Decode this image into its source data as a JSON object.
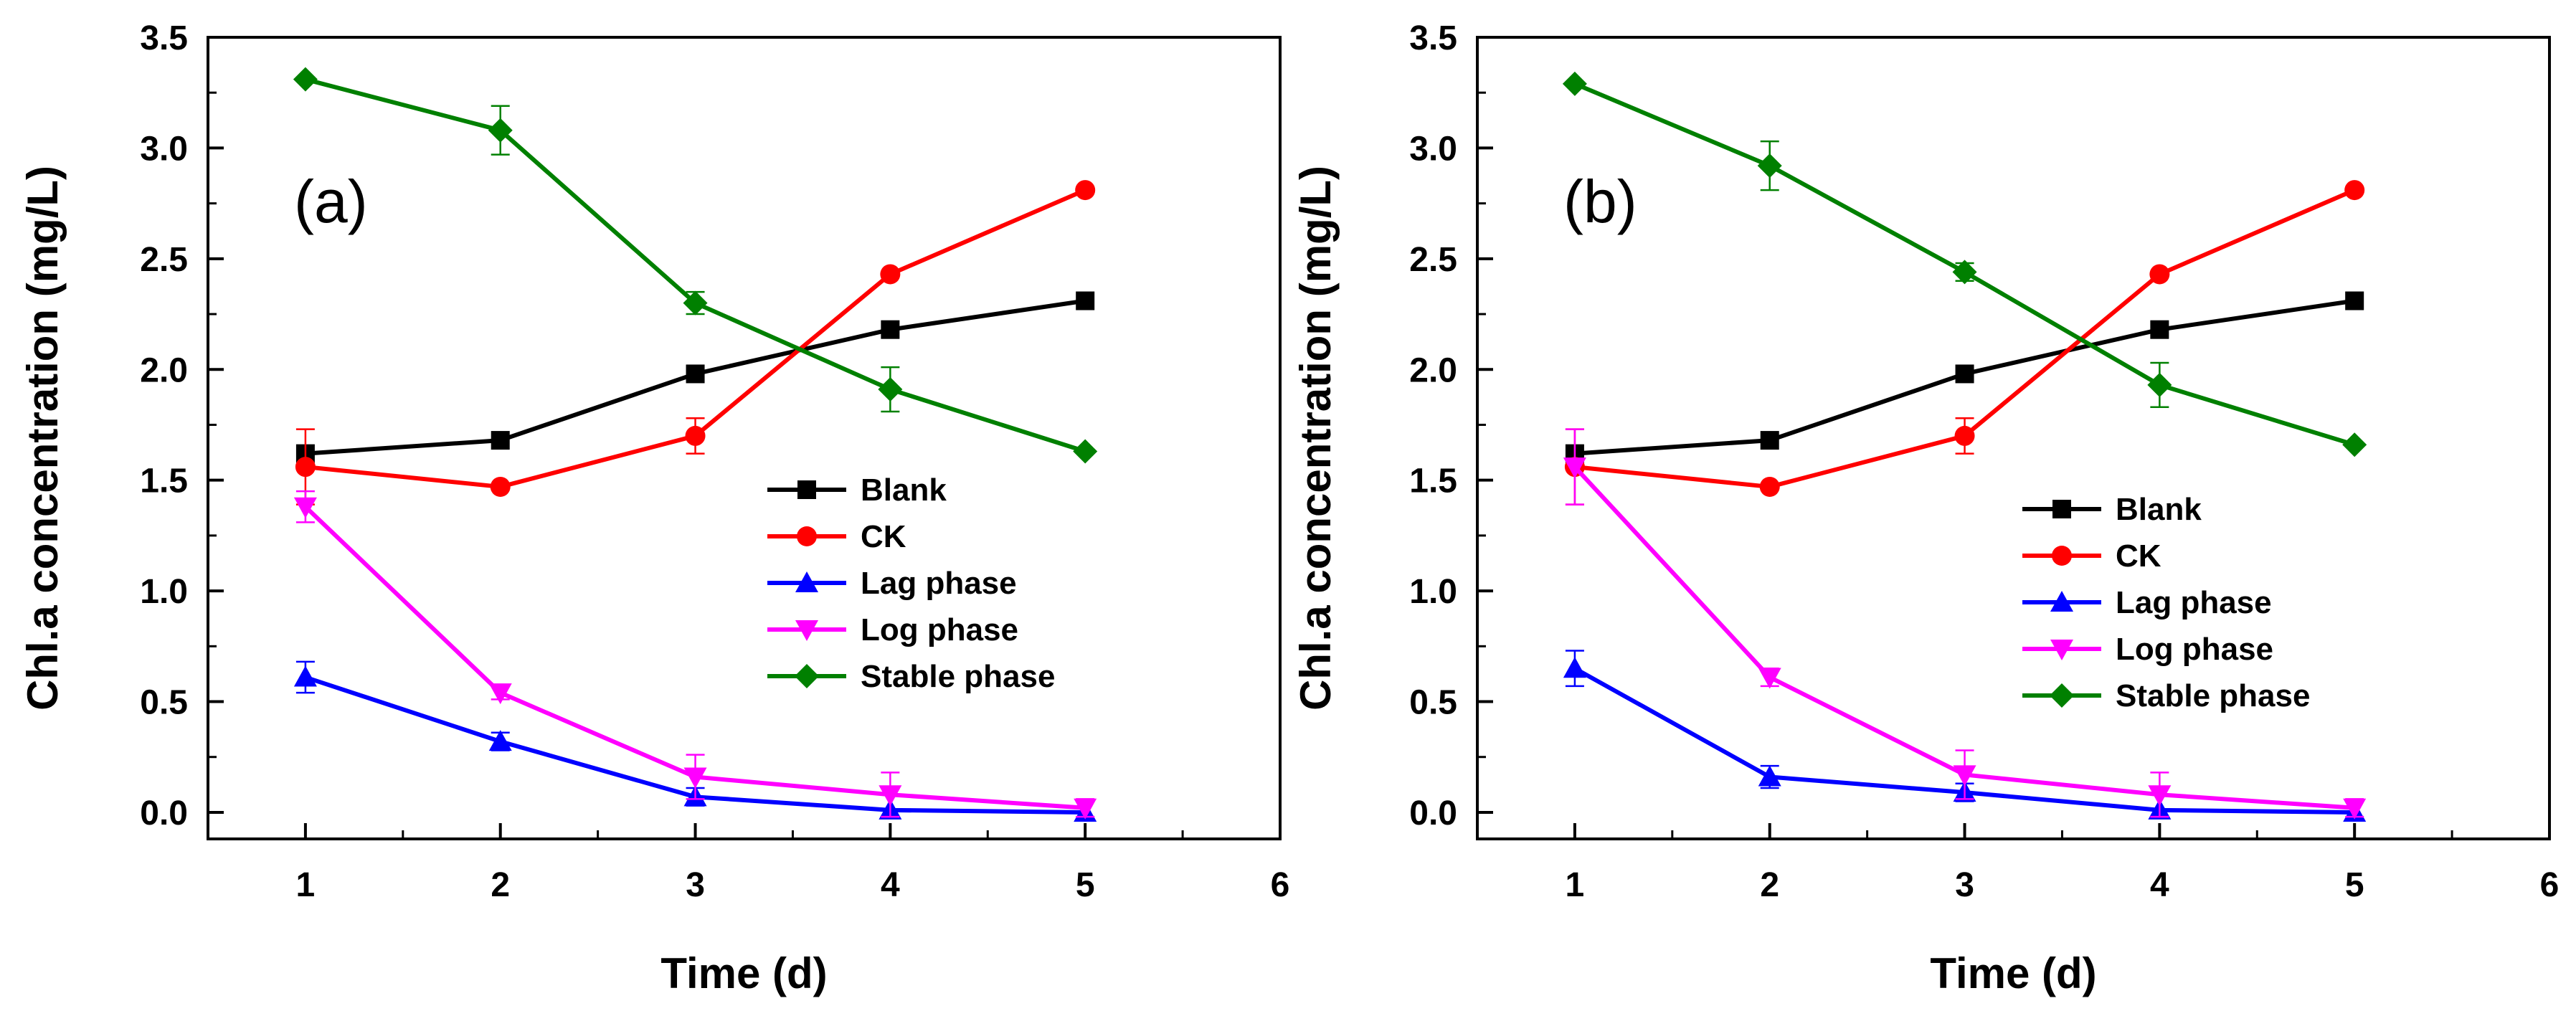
{
  "chart_data": [
    {
      "type": "line",
      "panel_label": "(a)",
      "xlabel": "Time (d)",
      "ylabel": "Chl.a concentration (mg/L)",
      "xlim": [
        0.5,
        6
      ],
      "ylim": [
        -0.12,
        3.5
      ],
      "xticks": [
        1,
        2,
        3,
        4,
        5,
        6
      ],
      "yticks": [
        "0.0",
        "0.5",
        "1.0",
        "1.5",
        "2.0",
        "2.5",
        "3.0",
        "3.5"
      ],
      "legend_position": "center-right",
      "x": [
        1,
        2,
        3,
        4,
        5
      ],
      "series": [
        {
          "name": "Blank",
          "color": "#000000",
          "marker": "square",
          "values": [
            1.62,
            1.68,
            1.98,
            2.18,
            2.31
          ],
          "errors": [
            0.02,
            0.02,
            0.02,
            0.02,
            0.02
          ]
        },
        {
          "name": "CK",
          "color": "#ff0000",
          "marker": "circle",
          "values": [
            1.56,
            1.47,
            1.7,
            2.43,
            2.81
          ],
          "errors": [
            0.17,
            0.02,
            0.08,
            0.02,
            0.02
          ]
        },
        {
          "name": "Lag phase",
          "color": "#0000ff",
          "marker": "triangle-up",
          "values": [
            0.61,
            0.32,
            0.07,
            0.01,
            0.0
          ],
          "errors": [
            0.07,
            0.04,
            0.04,
            0.02,
            0.01
          ]
        },
        {
          "name": "Log phase",
          "color": "#ff00ff",
          "marker": "triangle-down",
          "values": [
            1.38,
            0.54,
            0.16,
            0.08,
            0.02
          ],
          "errors": [
            0.07,
            0.03,
            0.1,
            0.1,
            0.04
          ]
        },
        {
          "name": "Stable phase",
          "color": "#008000",
          "marker": "diamond",
          "values": [
            3.31,
            3.08,
            2.3,
            1.91,
            1.63
          ],
          "errors": [
            0.02,
            0.11,
            0.05,
            0.1,
            0.02
          ]
        }
      ]
    },
    {
      "type": "line",
      "panel_label": "(b)",
      "xlabel": "Time (d)",
      "ylabel": "Chl.a concentration (mg/L)",
      "xlim": [
        0.5,
        6
      ],
      "ylim": [
        -0.12,
        3.5
      ],
      "xticks": [
        1,
        2,
        3,
        4,
        5,
        6
      ],
      "yticks": [
        "0.0",
        "0.5",
        "1.0",
        "1.5",
        "2.0",
        "2.5",
        "3.0",
        "3.5"
      ],
      "legend_position": "center-right",
      "x": [
        1,
        2,
        3,
        4,
        5
      ],
      "series": [
        {
          "name": "Blank",
          "color": "#000000",
          "marker": "square",
          "values": [
            1.62,
            1.68,
            1.98,
            2.18,
            2.31
          ],
          "errors": [
            0.02,
            0.02,
            0.02,
            0.02,
            0.02
          ]
        },
        {
          "name": "CK",
          "color": "#ff0000",
          "marker": "circle",
          "values": [
            1.56,
            1.47,
            1.7,
            2.43,
            2.81
          ],
          "errors": [
            0.17,
            0.02,
            0.08,
            0.02,
            0.02
          ]
        },
        {
          "name": "Lag phase",
          "color": "#0000ff",
          "marker": "triangle-up",
          "values": [
            0.65,
            0.16,
            0.09,
            0.01,
            0.0
          ],
          "errors": [
            0.08,
            0.05,
            0.04,
            0.02,
            0.01
          ]
        },
        {
          "name": "Log phase",
          "color": "#ff00ff",
          "marker": "triangle-down",
          "values": [
            1.56,
            0.61,
            0.17,
            0.08,
            0.02
          ],
          "errors": [
            0.17,
            0.04,
            0.11,
            0.1,
            0.04
          ]
        },
        {
          "name": "Stable phase",
          "color": "#008000",
          "marker": "diamond",
          "values": [
            3.29,
            2.92,
            2.44,
            1.93,
            1.66
          ],
          "errors": [
            0.02,
            0.11,
            0.04,
            0.1,
            0.02
          ]
        }
      ]
    }
  ]
}
